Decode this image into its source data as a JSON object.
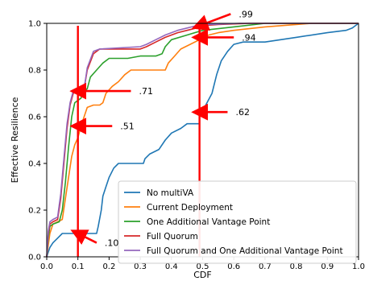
{
  "chart_data": {
    "type": "line",
    "xlabel": "CDF",
    "ylabel": "Effective Resilience",
    "xlim": [
      0,
      1
    ],
    "ylim": [
      0,
      1
    ],
    "xticks": [
      0,
      0.1,
      0.2,
      0.3,
      0.4,
      0.5,
      0.6,
      0.7,
      0.8,
      0.9,
      1.0
    ],
    "xtick_labels": [
      "0.0",
      "0.1",
      "0.2",
      "0.3",
      "0.4",
      "0.5",
      "0.6",
      "0.7",
      "0.8",
      "0.9",
      "1.0"
    ],
    "yticks": [
      0,
      0.2,
      0.4,
      0.6,
      0.8,
      1.0
    ],
    "ytick_labels": [
      "0.0",
      "0.2",
      "0.4",
      "0.6",
      "0.8",
      "1.0"
    ],
    "grid": false,
    "legend_position": "lower-right",
    "series": [
      {
        "name": "No multiVA",
        "color": "#1f77b4",
        "points": [
          [
            0,
            0
          ],
          [
            0.005,
            0.02
          ],
          [
            0.01,
            0.04
          ],
          [
            0.02,
            0.06
          ],
          [
            0.035,
            0.08
          ],
          [
            0.05,
            0.1
          ],
          [
            0.16,
            0.1
          ],
          [
            0.165,
            0.13
          ],
          [
            0.175,
            0.2
          ],
          [
            0.18,
            0.26
          ],
          [
            0.19,
            0.3
          ],
          [
            0.2,
            0.34
          ],
          [
            0.215,
            0.38
          ],
          [
            0.23,
            0.4
          ],
          [
            0.31,
            0.4
          ],
          [
            0.315,
            0.42
          ],
          [
            0.33,
            0.44
          ],
          [
            0.36,
            0.46
          ],
          [
            0.38,
            0.5
          ],
          [
            0.4,
            0.53
          ],
          [
            0.43,
            0.55
          ],
          [
            0.45,
            0.57
          ],
          [
            0.49,
            0.57
          ],
          [
            0.49,
            0.6
          ],
          [
            0.5,
            0.62
          ],
          [
            0.51,
            0.65
          ],
          [
            0.53,
            0.7
          ],
          [
            0.545,
            0.78
          ],
          [
            0.56,
            0.84
          ],
          [
            0.58,
            0.88
          ],
          [
            0.6,
            0.91
          ],
          [
            0.63,
            0.92
          ],
          [
            0.7,
            0.92
          ],
          [
            0.75,
            0.93
          ],
          [
            0.8,
            0.94
          ],
          [
            0.9,
            0.96
          ],
          [
            0.96,
            0.97
          ],
          [
            0.98,
            0.98
          ],
          [
            0.99,
            0.99
          ],
          [
            1.0,
            1.0
          ]
        ]
      },
      {
        "name": "Current Deployment",
        "color": "#ff7f0e",
        "points": [
          [
            0,
            0
          ],
          [
            0.005,
            0.05
          ],
          [
            0.01,
            0.1
          ],
          [
            0.02,
            0.14
          ],
          [
            0.035,
            0.15
          ],
          [
            0.05,
            0.16
          ],
          [
            0.06,
            0.25
          ],
          [
            0.07,
            0.34
          ],
          [
            0.08,
            0.43
          ],
          [
            0.09,
            0.48
          ],
          [
            0.1,
            0.51
          ],
          [
            0.11,
            0.56
          ],
          [
            0.12,
            0.6
          ],
          [
            0.13,
            0.64
          ],
          [
            0.15,
            0.65
          ],
          [
            0.17,
            0.65
          ],
          [
            0.18,
            0.66
          ],
          [
            0.19,
            0.7
          ],
          [
            0.21,
            0.73
          ],
          [
            0.23,
            0.75
          ],
          [
            0.25,
            0.78
          ],
          [
            0.27,
            0.8
          ],
          [
            0.38,
            0.8
          ],
          [
            0.39,
            0.83
          ],
          [
            0.41,
            0.86
          ],
          [
            0.43,
            0.89
          ],
          [
            0.46,
            0.91
          ],
          [
            0.49,
            0.93
          ],
          [
            0.5,
            0.94
          ],
          [
            0.52,
            0.95
          ],
          [
            0.55,
            0.96
          ],
          [
            0.6,
            0.97
          ],
          [
            0.7,
            0.985
          ],
          [
            0.8,
            0.995
          ],
          [
            0.85,
            1.0
          ],
          [
            1.0,
            1.0
          ]
        ]
      },
      {
        "name": "One Additional Vantage Point",
        "color": "#2ca02c",
        "points": [
          [
            0,
            0
          ],
          [
            0.005,
            0.08
          ],
          [
            0.01,
            0.13
          ],
          [
            0.02,
            0.14
          ],
          [
            0.04,
            0.15
          ],
          [
            0.05,
            0.2
          ],
          [
            0.06,
            0.32
          ],
          [
            0.07,
            0.47
          ],
          [
            0.08,
            0.6
          ],
          [
            0.09,
            0.66
          ],
          [
            0.1,
            0.67
          ],
          [
            0.11,
            0.68
          ],
          [
            0.12,
            0.71
          ],
          [
            0.13,
            0.72
          ],
          [
            0.14,
            0.77
          ],
          [
            0.16,
            0.8
          ],
          [
            0.18,
            0.83
          ],
          [
            0.2,
            0.85
          ],
          [
            0.22,
            0.85
          ],
          [
            0.26,
            0.85
          ],
          [
            0.3,
            0.86
          ],
          [
            0.35,
            0.86
          ],
          [
            0.37,
            0.87
          ],
          [
            0.38,
            0.9
          ],
          [
            0.4,
            0.93
          ],
          [
            0.45,
            0.95
          ],
          [
            0.5,
            0.97
          ],
          [
            0.6,
            0.985
          ],
          [
            0.7,
            1.0
          ],
          [
            1.0,
            1.0
          ]
        ]
      },
      {
        "name": "Full Quorum",
        "color": "#d62728",
        "points": [
          [
            0,
            0
          ],
          [
            0.005,
            0.1
          ],
          [
            0.01,
            0.14
          ],
          [
            0.02,
            0.15
          ],
          [
            0.035,
            0.16
          ],
          [
            0.045,
            0.25
          ],
          [
            0.055,
            0.4
          ],
          [
            0.065,
            0.55
          ],
          [
            0.075,
            0.65
          ],
          [
            0.085,
            0.7
          ],
          [
            0.095,
            0.71
          ],
          [
            0.11,
            0.71
          ],
          [
            0.12,
            0.72
          ],
          [
            0.13,
            0.8
          ],
          [
            0.15,
            0.87
          ],
          [
            0.17,
            0.89
          ],
          [
            0.3,
            0.89
          ],
          [
            0.32,
            0.9
          ],
          [
            0.35,
            0.92
          ],
          [
            0.38,
            0.94
          ],
          [
            0.42,
            0.96
          ],
          [
            0.45,
            0.97
          ],
          [
            0.48,
            0.98
          ],
          [
            0.5,
            0.99
          ],
          [
            0.55,
            0.995
          ],
          [
            0.65,
            1.0
          ],
          [
            1.0,
            1.0
          ]
        ]
      },
      {
        "name": "Full Quorum and One Additional Vantage Point",
        "color": "#9467bd",
        "points": [
          [
            0,
            0
          ],
          [
            0.005,
            0.11
          ],
          [
            0.01,
            0.15
          ],
          [
            0.02,
            0.16
          ],
          [
            0.035,
            0.17
          ],
          [
            0.045,
            0.27
          ],
          [
            0.055,
            0.42
          ],
          [
            0.065,
            0.57
          ],
          [
            0.075,
            0.66
          ],
          [
            0.085,
            0.71
          ],
          [
            0.095,
            0.71
          ],
          [
            0.12,
            0.72
          ],
          [
            0.13,
            0.81
          ],
          [
            0.15,
            0.88
          ],
          [
            0.17,
            0.89
          ],
          [
            0.3,
            0.9
          ],
          [
            0.32,
            0.91
          ],
          [
            0.35,
            0.93
          ],
          [
            0.38,
            0.95
          ],
          [
            0.42,
            0.97
          ],
          [
            0.45,
            0.98
          ],
          [
            0.48,
            0.99
          ],
          [
            0.52,
            0.995
          ],
          [
            0.62,
            1.0
          ],
          [
            1.0,
            1.0
          ]
        ]
      }
    ],
    "reference_lines": [
      {
        "x": 0.1,
        "color": "#ff0000"
      },
      {
        "x": 0.49,
        "color": "#ff0000"
      }
    ],
    "annotations": [
      {
        "text": ".99",
        "tip": [
          0.49,
          0.99
        ],
        "tail": [
          0.59,
          1.04
        ]
      },
      {
        "text": ".94",
        "tip": [
          0.49,
          0.94
        ],
        "tail": [
          0.6,
          0.94
        ]
      },
      {
        "text": ".71",
        "tip": [
          0.1,
          0.71
        ],
        "tail": [
          0.27,
          0.71
        ]
      },
      {
        "text": ".62",
        "tip": [
          0.49,
          0.62
        ],
        "tail": [
          0.58,
          0.62
        ]
      },
      {
        "text": ".51",
        "tip": [
          0.1,
          0.56
        ],
        "tail": [
          0.21,
          0.56
        ]
      },
      {
        "text": ".10",
        "tip": [
          0.1,
          0.1
        ],
        "tail": [
          0.16,
          0.06
        ]
      }
    ]
  }
}
